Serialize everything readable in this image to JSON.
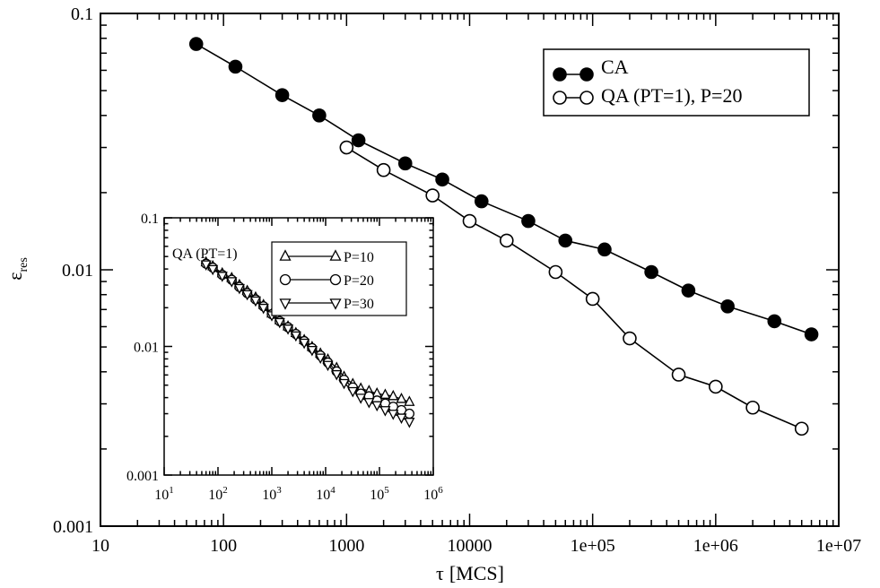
{
  "chart_data": [
    {
      "type": "line",
      "xscale": "log",
      "yscale": "log",
      "xlim": [
        10,
        10000000
      ],
      "ylim": [
        0.001,
        0.1
      ],
      "xlabel_symbol": "τ",
      "xlabel_unit": "[MCS]",
      "ylabel_symbol": "ε",
      "ylabel_sub": "res",
      "x_tick_labels": [
        "10",
        "100",
        "1000",
        "10000",
        "1e+05",
        "1e+06",
        "1e+07"
      ],
      "y_tick_labels": [
        "0.001",
        "0.01",
        "0.1"
      ],
      "legend_position": "top-right",
      "series": [
        {
          "name": "CA",
          "marker": "filled-circle",
          "x": [
            60,
            125,
            300,
            600,
            1250,
            3000,
            6000,
            12500,
            30000,
            60000,
            125000,
            300000,
            600000,
            1250000,
            3000000,
            6000000
          ],
          "y": [
            0.076,
            0.062,
            0.048,
            0.04,
            0.032,
            0.026,
            0.0225,
            0.0185,
            0.0155,
            0.013,
            0.012,
            0.0098,
            0.0083,
            0.0072,
            0.0063,
            0.0056
          ]
        },
        {
          "name": "QA (PT=1), P=20",
          "marker": "open-circle",
          "x": [
            1000,
            2000,
            5000,
            10000,
            20000,
            50000,
            100000,
            200000,
            500000,
            1000000,
            2000000,
            5000000
          ],
          "y": [
            0.03,
            0.0245,
            0.0195,
            0.0155,
            0.013,
            0.0098,
            0.0077,
            0.0054,
            0.0039,
            0.0035,
            0.0029,
            0.0024
          ]
        }
      ]
    },
    {
      "type": "line",
      "xscale": "log",
      "yscale": "log",
      "xlim": [
        10,
        1000000
      ],
      "ylim": [
        0.001,
        0.1
      ],
      "x_tick_labels": [
        {
          "base": "10",
          "exp": "1"
        },
        {
          "base": "10",
          "exp": "2"
        },
        {
          "base": "10",
          "exp": "3"
        },
        {
          "base": "10",
          "exp": "4"
        },
        {
          "base": "10",
          "exp": "5"
        },
        {
          "base": "10",
          "exp": "6"
        }
      ],
      "y_tick_labels": [
        "0.001",
        "0.01",
        "0.1"
      ],
      "legend_title": "QA (PT=1)",
      "legend_position": "top-left",
      "series": [
        {
          "name": "P=10",
          "marker": "triangle-up",
          "x": [
            60,
            80,
            120,
            180,
            250,
            350,
            500,
            700,
            1000,
            1400,
            2000,
            2800,
            4000,
            5600,
            8000,
            11000,
            16000,
            22000,
            32000,
            45000,
            64000,
            90000,
            128000,
            180000,
            256000,
            360000
          ],
          "y": [
            0.045,
            0.042,
            0.037,
            0.034,
            0.03,
            0.027,
            0.024,
            0.021,
            0.018,
            0.016,
            0.0143,
            0.0127,
            0.0112,
            0.0099,
            0.0088,
            0.0079,
            0.0068,
            0.0058,
            0.0051,
            0.0047,
            0.0045,
            0.0043,
            0.0042,
            0.0041,
            0.0039,
            0.0037
          ]
        },
        {
          "name": "P=20",
          "marker": "open-circle",
          "x": [
            60,
            80,
            120,
            180,
            250,
            350,
            500,
            700,
            1000,
            1400,
            2000,
            2800,
            4000,
            5600,
            8000,
            11000,
            16000,
            22000,
            32000,
            45000,
            64000,
            90000,
            128000,
            180000,
            256000,
            360000
          ],
          "y": [
            0.044,
            0.041,
            0.036,
            0.033,
            0.029,
            0.026,
            0.0232,
            0.0205,
            0.0178,
            0.0157,
            0.0141,
            0.0125,
            0.011,
            0.0097,
            0.0085,
            0.0075,
            0.0064,
            0.0055,
            0.0048,
            0.0043,
            0.0041,
            0.0038,
            0.0036,
            0.0034,
            0.0032,
            0.003
          ]
        },
        {
          "name": "P=30",
          "marker": "triangle-down",
          "x": [
            60,
            80,
            120,
            180,
            250,
            350,
            500,
            700,
            1000,
            1400,
            2000,
            2800,
            4000,
            5600,
            8000,
            11000,
            16000,
            22000,
            32000,
            45000,
            64000,
            90000,
            128000,
            180000,
            256000,
            360000
          ],
          "y": [
            0.0435,
            0.04,
            0.0355,
            0.0322,
            0.0285,
            0.0255,
            0.0228,
            0.02,
            0.0175,
            0.0155,
            0.0138,
            0.0122,
            0.0107,
            0.0094,
            0.0082,
            0.0072,
            0.0061,
            0.0052,
            0.0045,
            0.004,
            0.0037,
            0.0035,
            0.0032,
            0.003,
            0.0028,
            0.0026
          ]
        }
      ]
    }
  ]
}
